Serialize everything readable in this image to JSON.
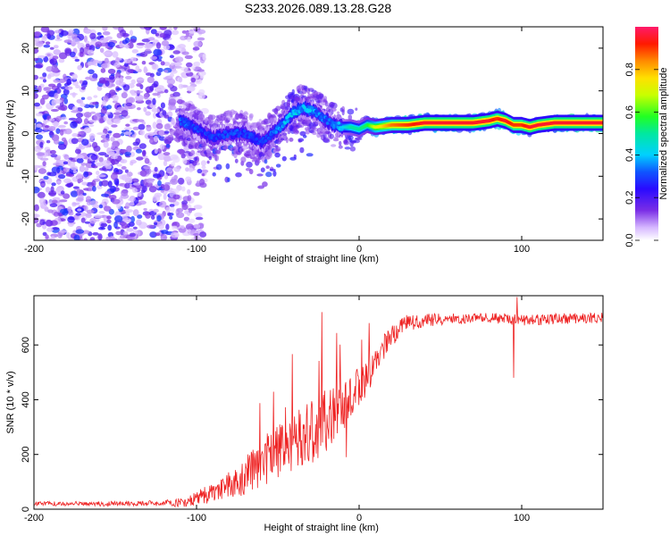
{
  "figure_title": "S233.2026.089.13.28.G28",
  "chart_data": [
    {
      "type": "heatmap",
      "title": "S233.2026.089.13.28.G28",
      "xlabel": "Height of straight line (km)",
      "ylabel": "Frequency (Hz)",
      "xlim": [
        -200,
        150
      ],
      "ylim": [
        -25,
        25
      ],
      "xticks": [
        -200,
        -100,
        0,
        100
      ],
      "yticks": [
        -20,
        -10,
        0,
        10,
        20
      ],
      "colorbar": {
        "label": "Normalized spectral amplitude",
        "range": [
          0,
          1
        ],
        "ticks": [
          0.0,
          0.2,
          0.4,
          0.6,
          0.8
        ],
        "tick_labels": [
          "0.0",
          "0.2",
          "0.4",
          "0.6",
          "0.8"
        ]
      },
      "ridge": {
        "x": [
          -110,
          -100,
          -90,
          -80,
          -70,
          -60,
          -50,
          -45,
          -40,
          -35,
          -30,
          -25,
          -20,
          -15,
          -10,
          -5,
          0,
          5,
          10,
          20,
          30,
          40,
          50,
          60,
          70,
          80,
          85,
          90,
          95,
          100,
          105,
          110,
          120,
          130,
          140,
          150
        ],
        "freq": [
          3,
          1,
          -1,
          0,
          0,
          -2,
          1,
          3,
          5,
          6,
          5.5,
          4.5,
          3,
          2,
          1.5,
          1.5,
          1,
          2,
          1.5,
          2,
          2,
          2.5,
          2.5,
          2.5,
          2.5,
          3,
          3.5,
          3,
          2,
          2,
          1.5,
          2,
          2.5,
          2.5,
          2.5,
          2.5
        ],
        "amplitude": [
          0.35,
          0.3,
          0.3,
          0.3,
          0.3,
          0.3,
          0.35,
          0.4,
          0.45,
          0.4,
          0.4,
          0.35,
          0.35,
          0.35,
          0.4,
          0.5,
          0.5,
          0.55,
          0.7,
          0.85,
          0.9,
          0.95,
          0.95,
          0.95,
          0.95,
          0.95,
          0.9,
          0.95,
          0.9,
          0.9,
          0.95,
          0.95,
          0.95,
          0.95,
          0.95,
          0.95
        ]
      },
      "noise_region": {
        "x_range": [
          -200,
          -105
        ],
        "freq_range": [
          -25,
          25
        ],
        "amplitude_range": [
          0.05,
          0.25
        ]
      }
    },
    {
      "type": "line",
      "xlabel": "Height of straight line (km)",
      "ylabel": "SNR (10 * v/v)",
      "xlim": [
        -200,
        150
      ],
      "ylim": [
        0,
        780
      ],
      "xticks": [
        -200,
        -100,
        0,
        100
      ],
      "yticks": [
        0,
        200,
        400,
        600
      ],
      "series": [
        {
          "name": "SNR",
          "color": "#ee2222",
          "trend_x": [
            -200,
            -150,
            -120,
            -110,
            -100,
            -90,
            -80,
            -70,
            -60,
            -50,
            -40,
            -30,
            -20,
            -15,
            -10,
            -5,
            0,
            5,
            10,
            15,
            20,
            25,
            30,
            40,
            50,
            60,
            80,
            100,
            120,
            150
          ],
          "trend_y": [
            20,
            20,
            22,
            25,
            40,
            60,
            90,
            120,
            170,
            210,
            250,
            280,
            320,
            350,
            380,
            420,
            450,
            480,
            540,
            590,
            630,
            660,
            680,
            690,
            695,
            695,
            700,
            690,
            695,
            700
          ],
          "noise_x": [
            -200,
            -120,
            -100,
            -80,
            -60,
            -40,
            -20,
            0,
            20,
            40,
            60,
            100,
            150
          ],
          "noise_amp": [
            8,
            10,
            25,
            50,
            90,
            110,
            120,
            70,
            40,
            25,
            20,
            20,
            20
          ],
          "features": [
            {
              "x": -23,
              "y": 720
            },
            {
              "x": -8,
              "y": 190
            },
            {
              "x": 6,
              "y": 680
            },
            {
              "x": 95,
              "y": 480
            },
            {
              "x": 97,
              "y": 775
            }
          ]
        }
      ]
    }
  ]
}
